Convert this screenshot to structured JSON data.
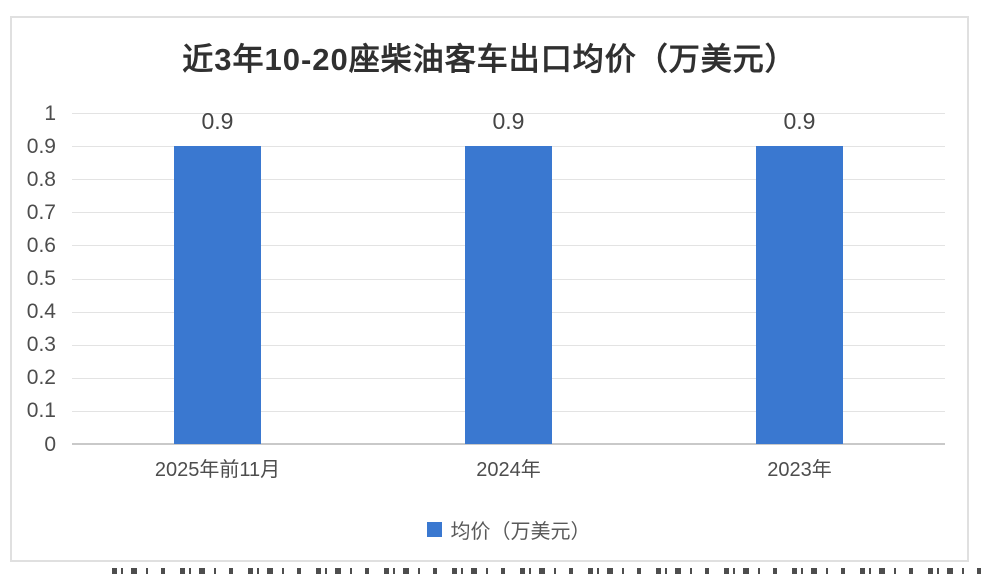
{
  "chart_card": {
    "background": "#FFFFFF",
    "border_color": "#E0E0E0"
  },
  "chart_data": {
    "type": "bar",
    "title": "近3年10-20座柴油客车出口均价（万美元）",
    "categories": [
      "2025年前11月",
      "2024年",
      "2023年"
    ],
    "series": [
      {
        "name": "均价（万美元）",
        "values": [
          0.9,
          0.9,
          0.9
        ]
      }
    ],
    "bar_value_labels": [
      "0.9",
      "0.9",
      "0.9"
    ],
    "xlabel": "",
    "ylabel": "",
    "ylim": [
      0,
      1
    ],
    "yticks": [
      0,
      0.1,
      0.2,
      0.3,
      0.4,
      0.5,
      0.6,
      0.7,
      0.8,
      0.9,
      1
    ],
    "ytick_labels": [
      "0",
      "0.1",
      "0.2",
      "0.3",
      "0.4",
      "0.5",
      "0.6",
      "0.7",
      "0.8",
      "0.9",
      "1"
    ],
    "grid": true,
    "legend_position": "bottom",
    "colors": {
      "bar": "#3A78D0",
      "gridline": "#E3E3E3",
      "axis_line": "#C9C9C9",
      "title_text": "#303030",
      "tick_text": "#4D4D4D",
      "value_label_text": "#454545",
      "legend_text": "#595959"
    }
  }
}
